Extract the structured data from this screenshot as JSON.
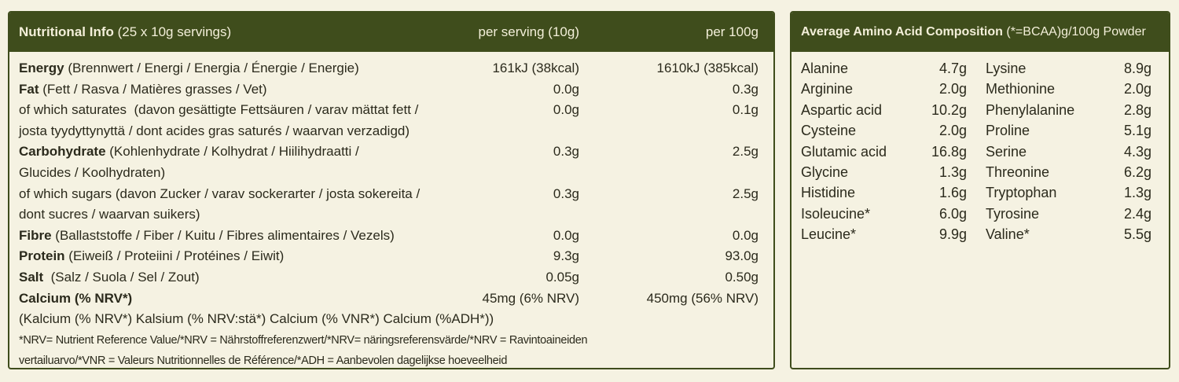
{
  "nutrition": {
    "header": {
      "title": "Nutritional Info",
      "subtitle": "(25 x 10g servings)",
      "per_serving": "per serving (10g)",
      "per_100g": "per 100g"
    },
    "rows": [
      {
        "name": "Energy",
        "lines": [
          "(Brennwert / Energi / Energia / Énergie / Energie)"
        ],
        "per_serving": "161kJ (38kcal)",
        "per_100g": "1610kJ (385kcal)"
      },
      {
        "name": "Fat",
        "lines": [
          "(Fett / Rasva / Matières grasses / Vet)"
        ],
        "per_serving": "0.0g",
        "per_100g": "0.3g"
      },
      {
        "lines": [
          "of which saturates  (davon gesättigte Fettsäuren / varav mättat fett /",
          "josta tyydyttynyttä / dont acides gras saturés / waarvan verzadigd)"
        ],
        "per_serving": "0.0g",
        "per_100g": "0.1g"
      },
      {
        "name": "Carbohydrate",
        "lines": [
          "(Kohlenhydrate / Kolhydrat / Hiilihydraatti /",
          "Glucides / Koolhydraten)"
        ],
        "per_serving": "0.3g",
        "per_100g": "2.5g"
      },
      {
        "lines": [
          "of which sugars (davon Zucker / varav sockerarter / josta sokereita /",
          "dont sucres / waarvan suikers)"
        ],
        "per_serving": "0.3g",
        "per_100g": "2.5g"
      },
      {
        "name": "Fibre",
        "lines": [
          "(Ballaststoffe / Fiber / Kuitu / Fibres alimentaires / Vezels)"
        ],
        "per_serving": "0.0g",
        "per_100g": "0.0g"
      },
      {
        "name": "Protein",
        "lines": [
          "(Eiweiß / Proteiini / Protéines / Eiwit)"
        ],
        "per_serving": "9.3g",
        "per_100g": "93.0g"
      },
      {
        "name": "Salt",
        "lines": [
          " (Salz / Suola / Sel / Zout)"
        ],
        "per_serving": "0.05g",
        "per_100g": "0.50g"
      },
      {
        "name": "Calcium (% NRV*)",
        "lines": [
          "",
          "(Kalcium (% NRV*) Kalsium (% NRV:stä*) Calcium (% VNR*) Calcium (%ADH*))"
        ],
        "per_serving": "45mg (6% NRV)",
        "per_100g": "450mg (56% NRV)"
      }
    ],
    "footnote": [
      "*NRV= Nutrient Reference Value/*NRV = Nährstoffreferenzwert/*NRV= näringsreferensvärde/*NRV = Ravintoaineiden",
      "vertailuarvo/*VNR = Valeurs Nutritionnelles de Référence/*ADH = Aanbevolen dagelijkse hoeveelheid"
    ]
  },
  "amino": {
    "header": {
      "title": "Average Amino Acid Composition",
      "subtitle": "(*=BCAA)g/100g Powder"
    },
    "columns": [
      [
        [
          "Alanine",
          "4.7g"
        ],
        [
          "Arginine",
          "2.0g"
        ],
        [
          "Aspartic acid",
          "10.2g"
        ],
        [
          "Cysteine",
          "2.0g"
        ],
        [
          "Glutamic acid",
          "16.8g"
        ],
        [
          "Glycine",
          "1.3g"
        ],
        [
          "Histidine",
          "1.6g"
        ],
        [
          "Isoleucine*",
          "6.0g"
        ],
        [
          "Leucine*",
          "9.9g"
        ]
      ],
      [
        [
          "Lysine",
          "8.9g"
        ],
        [
          "Methionine",
          "2.0g"
        ],
        [
          "Phenylalanine",
          "2.8g"
        ],
        [
          "Proline",
          "5.1g"
        ],
        [
          "Serine",
          "4.3g"
        ],
        [
          "Threonine",
          "6.2g"
        ],
        [
          "Tryptophan",
          "1.3g"
        ],
        [
          "Tyrosine",
          "2.4g"
        ],
        [
          "Valine*",
          "5.5g"
        ]
      ]
    ]
  }
}
